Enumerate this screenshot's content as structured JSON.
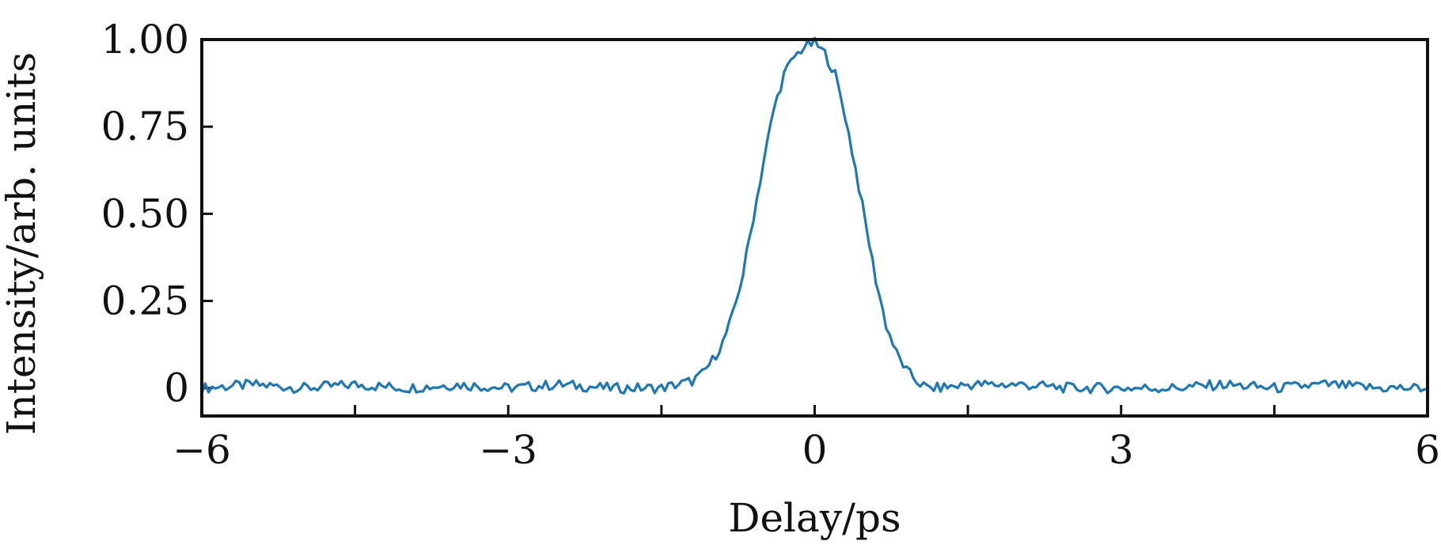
{
  "chart_data": {
    "type": "line",
    "title": "",
    "xlabel": "Delay/ps",
    "ylabel": "Intensity/arb. units",
    "xlim": [
      -6,
      6
    ],
    "ylim": [
      -0.08,
      1.0
    ],
    "x_ticks": [
      -6,
      -4.5,
      -3,
      -1.5,
      0,
      1.5,
      3,
      4.5,
      6
    ],
    "x_tick_labels": [
      "−6",
      "",
      "−3",
      "",
      "0",
      "",
      "3",
      "",
      "6"
    ],
    "y_ticks": [
      0,
      0.25,
      0.5,
      0.75,
      1.0
    ],
    "y_tick_labels": [
      "0",
      "0.25",
      "0.50",
      "0.75",
      "1.00"
    ],
    "grid": false,
    "legend": "none",
    "series": [
      {
        "color": "#1f77b4",
        "x": [
          -6.0,
          -5.5,
          -5.0,
          -4.5,
          -4.0,
          -3.5,
          -3.0,
          -2.5,
          -2.0,
          -1.5,
          -1.2,
          -1.1,
          -1.0,
          -0.9,
          -0.8,
          -0.7,
          -0.6,
          -0.5,
          -0.4,
          -0.3,
          -0.2,
          -0.1,
          0.0,
          0.1,
          0.2,
          0.3,
          0.4,
          0.5,
          0.6,
          0.7,
          0.8,
          0.9,
          1.0,
          1.1,
          1.2,
          1.5,
          2.0,
          2.5,
          3.0,
          3.5,
          4.0,
          4.5,
          5.0,
          5.5,
          6.0
        ],
        "y": [
          0.0,
          0.01,
          0.0,
          0.01,
          0.0,
          0.01,
          0.0,
          0.01,
          0.0,
          0.0,
          0.02,
          0.04,
          0.08,
          0.13,
          0.21,
          0.33,
          0.49,
          0.65,
          0.8,
          0.9,
          0.95,
          0.98,
          0.99,
          0.96,
          0.9,
          0.78,
          0.63,
          0.47,
          0.31,
          0.18,
          0.1,
          0.05,
          0.02,
          0.0,
          0.0,
          0.01,
          0.01,
          0.0,
          0.0,
          0.0,
          0.01,
          0.0,
          0.01,
          0.0,
          0.0
        ]
      }
    ]
  }
}
